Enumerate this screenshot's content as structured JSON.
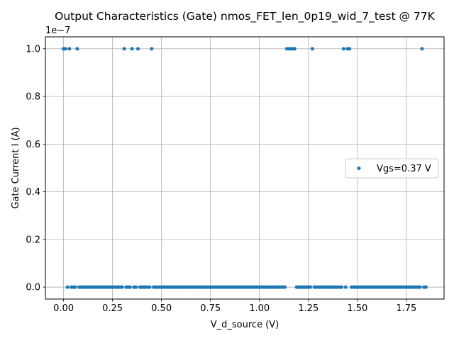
{
  "chart_data": {
    "type": "scatter",
    "title": "Output Characteristics (Gate) nmos_FET_len_0p19_wid_7_test @ 77K",
    "xlabel": "V_d_source (V)",
    "ylabel": "Gate Current I (A)",
    "y_offset_label": "1e−7",
    "xlim": [
      -0.0925,
      1.9425
    ],
    "ylim": [
      -0.05,
      1.05
    ],
    "y_multiplier": 1e-07,
    "xticks": [
      0.0,
      0.25,
      0.5,
      0.75,
      1.0,
      1.25,
      1.5,
      1.75
    ],
    "xtick_labels": [
      "0.00",
      "0.25",
      "0.50",
      "0.75",
      "1.00",
      "1.25",
      "1.50",
      "1.75"
    ],
    "yticks": [
      0.0,
      0.2,
      0.4,
      0.6,
      0.8,
      1.0
    ],
    "ytick_labels": [
      "0.0",
      "0.2",
      "0.4",
      "0.6",
      "0.8",
      "1.0"
    ],
    "grid": true,
    "legend_position": "center-right",
    "series": [
      {
        "name": "Vgs=0.37 V",
        "color": "#1f77b4",
        "high_value": 1e-07,
        "low_value": 0,
        "x_high": [
          0.0,
          0.01,
          0.03,
          0.07,
          0.31,
          0.35,
          0.38,
          0.45,
          1.14,
          1.15,
          1.16,
          1.17,
          1.18,
          1.27,
          1.43,
          1.45,
          1.46,
          1.83
        ],
        "x_low_ranges": [
          [
            0.02,
            0.02
          ],
          [
            0.04,
            0.06
          ],
          [
            0.08,
            0.3
          ],
          [
            0.32,
            0.34
          ],
          [
            0.36,
            0.37
          ],
          [
            0.39,
            0.44
          ],
          [
            0.46,
            1.13
          ],
          [
            1.19,
            1.26
          ],
          [
            1.28,
            1.42
          ],
          [
            1.44,
            1.44
          ],
          [
            1.47,
            1.82
          ],
          [
            1.84,
            1.85
          ]
        ],
        "x_step": 0.01
      }
    ]
  }
}
